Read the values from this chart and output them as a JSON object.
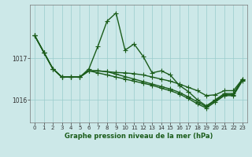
{
  "bg_color": "#cce8e8",
  "grid_color": "#99cccc",
  "line_color": "#1a5c1a",
  "xlabel": "Graphe pression niveau de la mer (hPa)",
  "xlabel_fontsize": 6.0,
  "ytick_labels": [
    "1016",
    "1017"
  ],
  "ytick_vals": [
    1016,
    1017
  ],
  "ylim": [
    1015.45,
    1018.3
  ],
  "xlim": [
    -0.5,
    23.5
  ],
  "tick_fontsize": 5.0,
  "linewidth": 1.0,
  "markersize": 2.0,
  "series": [
    [
      1017.55,
      1017.15,
      1016.75,
      1016.55,
      1016.55,
      1016.55,
      1016.75,
      1017.3,
      1017.9,
      1018.1,
      1017.2,
      1017.35,
      1017.05,
      1016.65,
      1016.7,
      1016.6,
      1016.35,
      1016.2,
      1016.0,
      1015.85,
      1016.0,
      1016.15,
      1016.15,
      1016.5
    ],
    [
      1017.55,
      1017.15,
      1016.75,
      1016.55,
      1016.55,
      1016.55,
      1016.7,
      1016.7,
      1016.68,
      1016.66,
      1016.65,
      1016.63,
      1016.6,
      1016.55,
      1016.5,
      1016.45,
      1016.38,
      1016.3,
      1016.22,
      1016.1,
      1016.12,
      1016.22,
      1016.22,
      1016.5
    ],
    [
      1017.55,
      1017.15,
      1016.75,
      1016.55,
      1016.55,
      1016.55,
      1016.7,
      1016.7,
      1016.68,
      1016.62,
      1016.56,
      1016.5,
      1016.44,
      1016.38,
      1016.32,
      1016.26,
      1016.18,
      1016.07,
      1015.95,
      1015.83,
      1015.98,
      1016.12,
      1016.12,
      1016.48
    ],
    [
      1017.55,
      1017.15,
      1016.75,
      1016.55,
      1016.55,
      1016.55,
      1016.7,
      1016.65,
      1016.6,
      1016.55,
      1016.5,
      1016.45,
      1016.4,
      1016.35,
      1016.28,
      1016.22,
      1016.14,
      1016.03,
      1015.9,
      1015.8,
      1015.95,
      1016.1,
      1016.1,
      1016.46
    ]
  ],
  "hours": [
    0,
    1,
    2,
    3,
    4,
    5,
    6,
    7,
    8,
    9,
    10,
    11,
    12,
    13,
    14,
    15,
    16,
    17,
    18,
    19,
    20,
    21,
    22,
    23
  ]
}
